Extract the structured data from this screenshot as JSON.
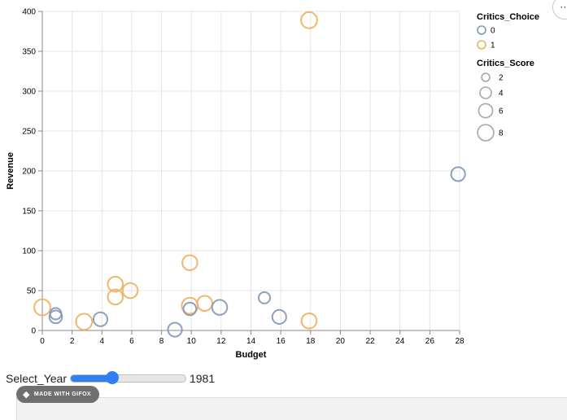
{
  "chart_data": {
    "type": "scatter",
    "xlabel": "Budget",
    "ylabel": "Revenue",
    "xlim": [
      0,
      28
    ],
    "ylim": [
      0,
      400
    ],
    "x_ticks": [
      "0",
      "2",
      "4",
      "6",
      "8",
      "10",
      "12",
      "14",
      "16",
      "18",
      "20",
      "22",
      "24",
      "26",
      "28"
    ],
    "y_ticks": [
      "0",
      "50",
      "100",
      "150",
      "200",
      "250",
      "300",
      "350",
      "400"
    ],
    "grid": true,
    "legend_placement": "right",
    "legend_color": {
      "title": "Critics_Choice",
      "entries": [
        {
          "label": "0",
          "color": "#7f97b5"
        },
        {
          "label": "1",
          "color": "#f0ae5e"
        }
      ]
    },
    "legend_size": {
      "title": "Critics_Score",
      "entries": [
        {
          "label": "2",
          "size": 2
        },
        {
          "label": "4",
          "size": 4
        },
        {
          "label": "6",
          "size": 6
        },
        {
          "label": "8",
          "size": 8
        }
      ]
    },
    "points": [
      {
        "budget": 0,
        "revenue": 29,
        "critics_choice": 1,
        "critics_score": 8
      },
      {
        "budget": 0.9,
        "revenue": 21,
        "critics_choice": 0,
        "critics_score": 4
      },
      {
        "budget": 0.9,
        "revenue": 17,
        "critics_choice": 0,
        "critics_score": 5
      },
      {
        "budget": 2.8,
        "revenue": 11,
        "critics_choice": 1,
        "critics_score": 8
      },
      {
        "budget": 3.9,
        "revenue": 14,
        "critics_choice": 0,
        "critics_score": 6
      },
      {
        "budget": 4.9,
        "revenue": 58,
        "critics_choice": 1,
        "critics_score": 7
      },
      {
        "budget": 4.9,
        "revenue": 42,
        "critics_choice": 1,
        "critics_score": 7
      },
      {
        "budget": 5.9,
        "revenue": 50,
        "critics_choice": 1,
        "critics_score": 7
      },
      {
        "budget": 8.9,
        "revenue": 1,
        "critics_choice": 0,
        "critics_score": 6
      },
      {
        "budget": 9.9,
        "revenue": 85,
        "critics_choice": 1,
        "critics_score": 7
      },
      {
        "budget": 9.9,
        "revenue": 31,
        "critics_choice": 1,
        "critics_score": 8
      },
      {
        "budget": 9.9,
        "revenue": 27,
        "critics_choice": 0,
        "critics_score": 5
      },
      {
        "budget": 10.9,
        "revenue": 34,
        "critics_choice": 1,
        "critics_score": 7
      },
      {
        "budget": 11.9,
        "revenue": 29,
        "critics_choice": 0,
        "critics_score": 7
      },
      {
        "budget": 14.9,
        "revenue": 41,
        "critics_choice": 0,
        "critics_score": 4
      },
      {
        "budget": 15.9,
        "revenue": 17,
        "critics_choice": 0,
        "critics_score": 6
      },
      {
        "budget": 17.9,
        "revenue": 389,
        "critics_choice": 1,
        "critics_score": 8
      },
      {
        "budget": 17.9,
        "revenue": 12,
        "critics_choice": 1,
        "critics_score": 7
      },
      {
        "budget": 27.9,
        "revenue": 196,
        "critics_choice": 0,
        "critics_score": 6
      }
    ]
  },
  "controls": {
    "slider_label": "Select_Year",
    "slider_value": "1981",
    "slider_fraction": 0.36
  },
  "footer": {
    "badge_text": "MADE WITH GIFOX",
    "fox_icon": "fox-icon"
  }
}
